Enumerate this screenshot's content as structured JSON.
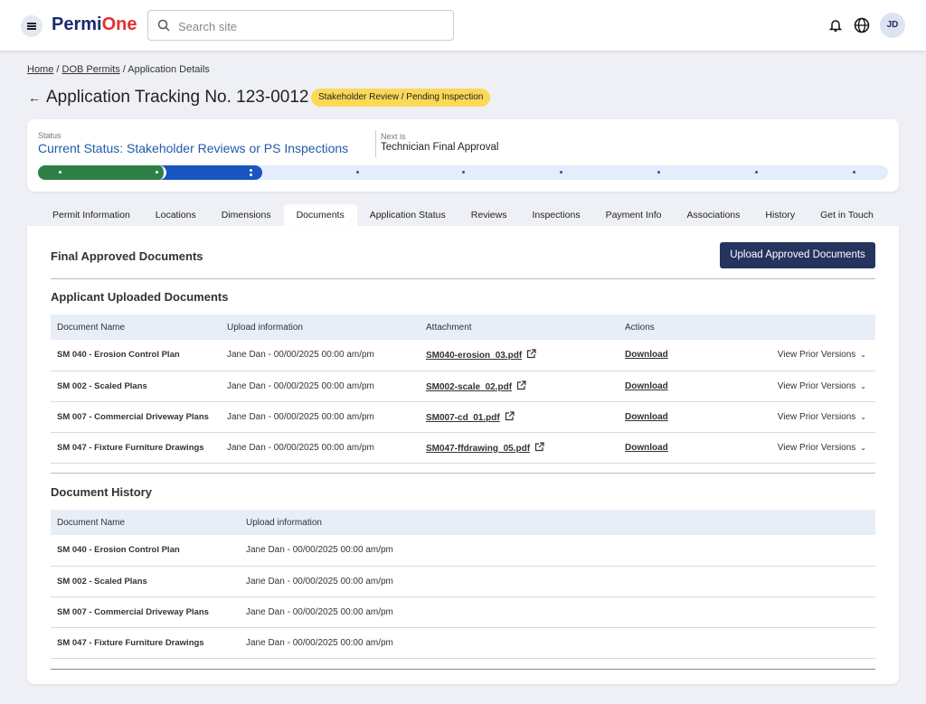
{
  "header": {
    "logo_first": "Permi",
    "logo_second": "One",
    "search_placeholder": "Search site",
    "avatar": "JD"
  },
  "breadcrumb": [
    "Home",
    "DOB Permits",
    "Application Details"
  ],
  "page": {
    "title": "Application Tracking No. 123-0012",
    "badge": "Stakeholder Review / Pending Inspection"
  },
  "status": {
    "label": "Status",
    "current": "Current Status: Stakeholder Reviews or PS Inspections",
    "next_label": "Next is",
    "next": "Technician Final Approval"
  },
  "tabs": [
    "Permit Information",
    "Locations",
    "Dimensions",
    "Documents",
    "Application Status",
    "Reviews",
    "Inspections",
    "Payment Info",
    "Associations",
    "History",
    "Get in Touch"
  ],
  "final_documents": {
    "title": "Final Approved Documents",
    "button": "Upload Approved Documents"
  },
  "applicant_documents": {
    "title": "Applicant Uploaded Documents",
    "columns": [
      "Document Name",
      "Upload information",
      "Attachment",
      "Actions"
    ],
    "rows": [
      [
        "SM 040 - Erosion Control Plan",
        "Jane Dan - 00/00/2025 00:00 am/pm",
        "SM040-erosion_03.pdf",
        "Download",
        "View Prior Versions"
      ],
      [
        "SM 002 - Scaled Plans",
        "Jane Dan - 00/00/2025 00:00 am/pm",
        "SM002-scale_02.pdf",
        "Download",
        "View Prior Versions"
      ],
      [
        "SM 007 - Commercial Driveway Plans",
        "Jane Dan - 00/00/2025 00:00 am/pm",
        "SM007-cd_01.pdf",
        "Download",
        "View Prior Versions"
      ],
      [
        "SM 047 - Fixture Furniture Drawings",
        "Jane Dan - 00/00/2025 00:00 am/pm",
        "SM047-ffdrawing_05.pdf",
        "Download",
        "View Prior Versions"
      ]
    ]
  },
  "document_history": {
    "title": "Document History",
    "columns": [
      "Document Name",
      "Upload information"
    ],
    "rows": [
      [
        "SM 040 - Erosion Control Plan",
        "Jane Dan - 00/00/2025 00:00 am/pm"
      ],
      [
        "SM 002 - Scaled Plans",
        "Jane Dan - 00/00/2025 00:00 am/pm"
      ],
      [
        "SM 007 - Commercial Driveway Plans",
        "Jane Dan - 00/00/2025 00:00 am/pm"
      ],
      [
        "SM 047 - Fixture Furniture Drawings",
        "Jane Dan - 00/00/2025 00:00 am/pm"
      ]
    ]
  }
}
